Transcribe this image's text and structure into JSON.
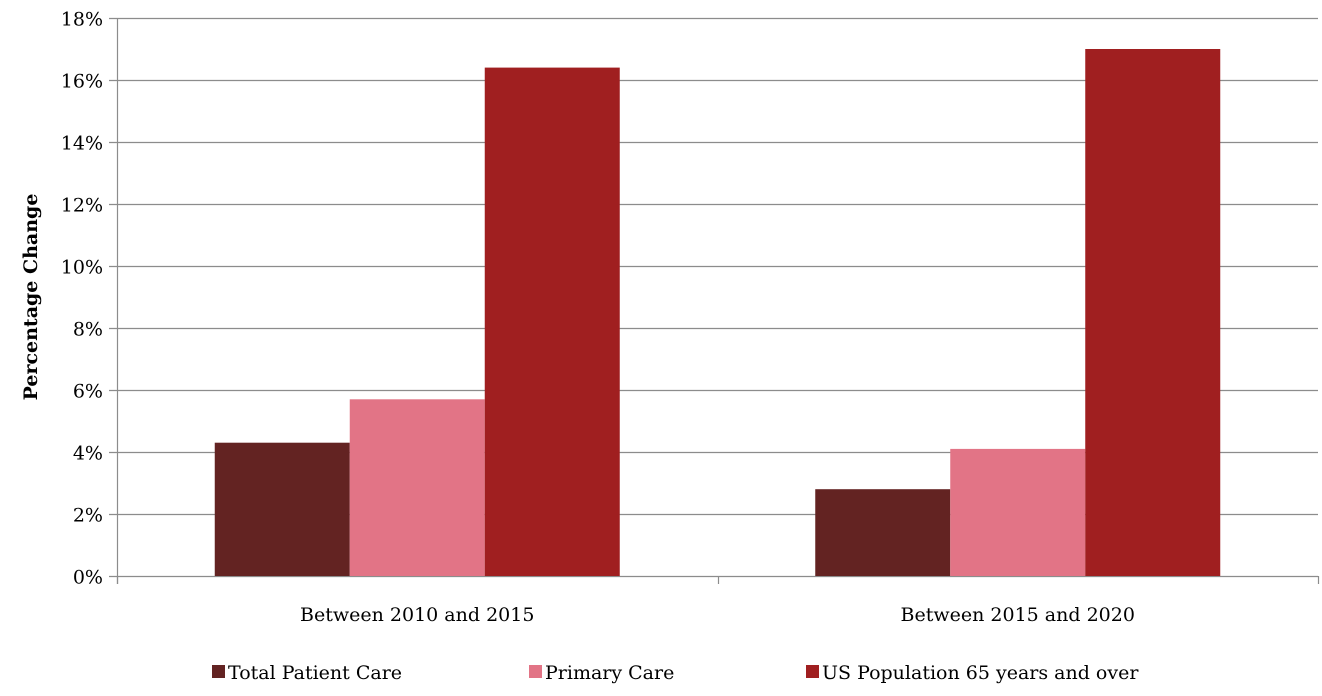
{
  "chart_data": {
    "type": "bar",
    "ylabel": "Percentage Change",
    "xlabel": "",
    "ylim": [
      0,
      18
    ],
    "y_ticks": [
      "0%",
      "2%",
      "4%",
      "6%",
      "8%",
      "10%",
      "12%",
      "14%",
      "16%",
      "18%"
    ],
    "grid": true,
    "legend_position": "bottom",
    "categories": [
      "Between 2010 and 2015",
      "Between 2015 and 2020"
    ],
    "series": [
      {
        "name": "Total Patient Care",
        "color": "#632322",
        "values": [
          4.3,
          2.8
        ]
      },
      {
        "name": "Primary Care",
        "color": "#E27486",
        "values": [
          5.7,
          4.1
        ]
      },
      {
        "name": "US Population 65 years and over",
        "color": "#A01F20",
        "values": [
          16.4,
          17.0
        ]
      }
    ]
  }
}
